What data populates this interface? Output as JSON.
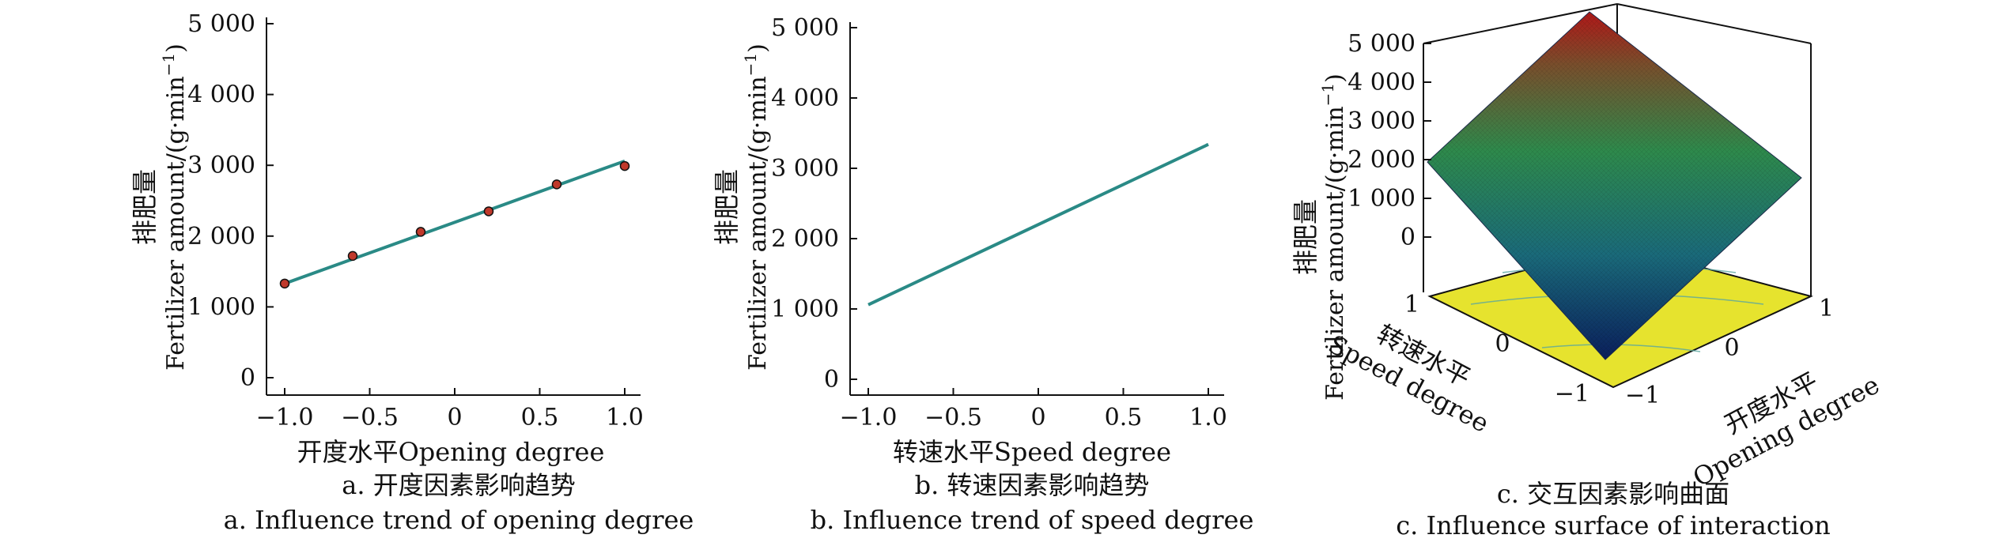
{
  "chart_data": [
    {
      "type": "line",
      "xlabel": "开度水平Opening degree",
      "ylabel_cn": "排肥量",
      "ylabel_en": "Fertilizer amount/(g·min",
      "ylabel_sup": "−1",
      "ylabel_close": ")",
      "xlim": [
        -1.0,
        1.0
      ],
      "ylim": [
        0,
        5000
      ],
      "xticks": [
        -1.0,
        -0.5,
        0,
        0.5,
        1.0
      ],
      "xtick_labels": [
        "−1.0",
        "−0.5",
        "0",
        "0.5",
        "1.0"
      ],
      "yticks": [
        0,
        1000,
        2000,
        3000,
        4000,
        5000
      ],
      "ytick_labels": [
        "0",
        "1 000",
        "2 000",
        "3 000",
        "4 000",
        "5 000"
      ],
      "line": {
        "x": [
          -1.0,
          1.0
        ],
        "y": [
          1330,
          3060
        ],
        "color": "#2a8a86"
      },
      "points": {
        "x": [
          -1.0,
          -0.6,
          -0.2,
          0.2,
          0.6,
          1.0
        ],
        "y": [
          1330,
          1720,
          2060,
          2350,
          2730,
          2990
        ],
        "color": "#c0392b"
      },
      "caption_cn": "a. 开度因素影响趋势",
      "caption_en": "a. Influence trend of opening degree"
    },
    {
      "type": "line",
      "xlabel": "转速水平Speed degree",
      "ylabel_cn": "排肥量",
      "ylabel_en": "Fertilizer amount/(g·min",
      "ylabel_sup": "−1",
      "ylabel_close": ")",
      "xlim": [
        -1.0,
        1.0
      ],
      "ylim": [
        0,
        5000
      ],
      "xticks": [
        -1.0,
        -0.5,
        0,
        0.5,
        1.0
      ],
      "xtick_labels": [
        "−1.0",
        "−0.5",
        "0",
        "0.5",
        "1.0"
      ],
      "yticks": [
        0,
        1000,
        2000,
        3000,
        4000,
        5000
      ],
      "ytick_labels": [
        "0",
        "1 000",
        "2 000",
        "3 000",
        "4 000",
        "5 000"
      ],
      "line": {
        "x": [
          -1.0,
          1.0
        ],
        "y": [
          1060,
          3340
        ],
        "color": "#2a8a86"
      },
      "caption_cn": "b. 转速因素影响趋势",
      "caption_en": "b. Influence trend of speed degree"
    },
    {
      "type": "surface",
      "zlabel_cn": "排肥量",
      "zlabel_en": "Fertilizer amount/(g·min",
      "zlabel_sup": "−1",
      "zlabel_close": ")",
      "zticks": [
        0,
        1000,
        2000,
        3000,
        4000,
        5000
      ],
      "ztick_labels": [
        "0",
        "1 000",
        "2 000",
        "3 000",
        "4 000",
        "5 000"
      ],
      "speed_axis": {
        "label_cn": "转速水平",
        "label_en": "Speed degree",
        "ticks": [
          "1",
          "0",
          "−1"
        ]
      },
      "opening_axis": {
        "label_cn": "开度水平",
        "label_en": "Opening degree",
        "ticks": [
          "−1",
          "0",
          "1"
        ]
      },
      "surface_range": [
        0,
        5000
      ],
      "corner_values": {
        "low_low": 0,
        "high_high": 5000,
        "mixed": 2000
      },
      "caption_cn": "c. 交互因素影响曲面",
      "caption_en": "c. Influence surface of interaction"
    }
  ]
}
